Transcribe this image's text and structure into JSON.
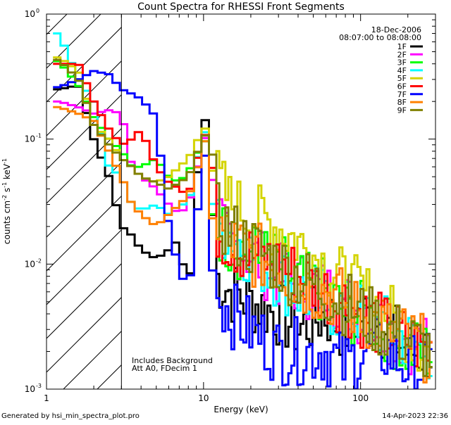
{
  "chart_data": {
    "type": "line",
    "title": "Count Spectra for RHESSI Front Segments",
    "xlabel": "Energy (keV)",
    "ylabel_parts": {
      "base": "counts cm",
      "exp1": "-2",
      "mid": " s",
      "exp2": "-1",
      "end": " keV",
      "exp3": "-1"
    },
    "x_scale": "log",
    "y_scale": "log",
    "xlim": [
      1,
      300
    ],
    "ylim": [
      0.001,
      1
    ],
    "x_ticks": [
      {
        "value": 1,
        "label": "1"
      },
      {
        "value": 10,
        "label": "10"
      },
      {
        "value": 100,
        "label": "100"
      }
    ],
    "y_ticks": [
      {
        "value": 0.001,
        "base": "10",
        "exp": "-3"
      },
      {
        "value": 0.01,
        "base": "10",
        "exp": "-2"
      },
      {
        "value": 0.1,
        "base": "10",
        "exp": "-1"
      },
      {
        "value": 1,
        "base": "10",
        "exp": "0"
      }
    ],
    "attenuator_cutoff_keV": 3,
    "date": "18-Dec-2006",
    "time_range": "08:07:00 to 08:08:00",
    "annotations": [
      "Includes Background",
      "Att A0, FDecim 1"
    ],
    "series": [
      {
        "name": "1F",
        "color": "#000000",
        "points": [
          [
            1.2,
            0.25
          ],
          [
            1.6,
            0.27
          ],
          [
            2,
            0.1
          ],
          [
            2.5,
            0.05
          ],
          [
            3,
            0.02
          ],
          [
            3.5,
            0.017
          ],
          [
            4,
            0.013
          ],
          [
            5,
            0.011
          ],
          [
            6,
            0.013
          ],
          [
            7,
            0.016
          ],
          [
            8,
            0.005
          ],
          [
            9,
            0.04
          ],
          [
            10,
            0.19
          ],
          [
            11,
            0.06
          ],
          [
            12,
            0.008
          ],
          [
            15,
            0.006
          ],
          [
            20,
            0.005
          ],
          [
            30,
            0.004
          ],
          [
            40,
            0.003
          ],
          [
            60,
            0.004
          ],
          [
            80,
            0.003
          ],
          [
            100,
            0.004
          ],
          [
            150,
            0.003
          ],
          [
            200,
            0.002
          ],
          [
            280,
            0.002
          ]
        ]
      },
      {
        "name": "2F",
        "color": "#ff00ff",
        "points": [
          [
            1.2,
            0.2
          ],
          [
            1.6,
            0.18
          ],
          [
            2,
            0.16
          ],
          [
            2.5,
            0.17
          ],
          [
            3,
            0.16
          ],
          [
            3.5,
            0.06
          ],
          [
            4,
            0.05
          ],
          [
            5,
            0.04
          ],
          [
            6,
            0.03
          ],
          [
            7,
            0.025
          ],
          [
            8,
            0.03
          ],
          [
            9,
            0.05
          ],
          [
            10,
            0.13
          ],
          [
            11,
            0.05
          ],
          [
            12,
            0.02
          ],
          [
            15,
            0.015
          ],
          [
            20,
            0.012
          ],
          [
            30,
            0.008
          ],
          [
            40,
            0.007
          ],
          [
            60,
            0.006
          ],
          [
            80,
            0.005
          ],
          [
            100,
            0.004
          ],
          [
            150,
            0.003
          ],
          [
            200,
            0.0025
          ],
          [
            280,
            0.002
          ]
        ]
      },
      {
        "name": "3F",
        "color": "#00ff00",
        "points": [
          [
            1.2,
            0.42
          ],
          [
            1.6,
            0.27
          ],
          [
            2,
            0.15
          ],
          [
            2.5,
            0.1
          ],
          [
            3,
            0.08
          ],
          [
            3.5,
            0.06
          ],
          [
            4,
            0.06
          ],
          [
            5,
            0.07
          ],
          [
            6,
            0.05
          ],
          [
            7,
            0.045
          ],
          [
            8,
            0.055
          ],
          [
            9,
            0.07
          ],
          [
            10,
            0.12
          ],
          [
            11,
            0.05
          ],
          [
            12,
            0.02
          ],
          [
            15,
            0.015
          ],
          [
            20,
            0.012
          ],
          [
            30,
            0.01
          ],
          [
            40,
            0.007
          ],
          [
            60,
            0.006
          ],
          [
            80,
            0.004
          ],
          [
            100,
            0.004
          ],
          [
            150,
            0.003
          ],
          [
            200,
            0.002
          ],
          [
            280,
            0.002
          ]
        ]
      },
      {
        "name": "4F",
        "color": "#00ffff",
        "points": [
          [
            1.2,
            0.7
          ],
          [
            1.6,
            0.3
          ],
          [
            2,
            0.2
          ],
          [
            2.5,
            0.06
          ],
          [
            3,
            0.05
          ],
          [
            3.5,
            0.03
          ],
          [
            4,
            0.027
          ],
          [
            5,
            0.03
          ],
          [
            6,
            0.025
          ],
          [
            7,
            0.03
          ],
          [
            8,
            0.03
          ],
          [
            9,
            0.06
          ],
          [
            10,
            0.15
          ],
          [
            11,
            0.05
          ],
          [
            12,
            0.02
          ],
          [
            15,
            0.018
          ],
          [
            20,
            0.012
          ],
          [
            30,
            0.008
          ],
          [
            40,
            0.006
          ],
          [
            60,
            0.005
          ],
          [
            80,
            0.004
          ],
          [
            100,
            0.004
          ],
          [
            150,
            0.003
          ],
          [
            200,
            0.0025
          ],
          [
            280,
            0.002
          ]
        ]
      },
      {
        "name": "5F",
        "color": "#d4d400",
        "points": [
          [
            1.2,
            0.45
          ],
          [
            1.6,
            0.35
          ],
          [
            2,
            0.13
          ],
          [
            2.5,
            0.1
          ],
          [
            3,
            0.07
          ],
          [
            3.5,
            0.06
          ],
          [
            4,
            0.05
          ],
          [
            5,
            0.045
          ],
          [
            6,
            0.05
          ],
          [
            7,
            0.06
          ],
          [
            8,
            0.07
          ],
          [
            9,
            0.09
          ],
          [
            10,
            0.14
          ],
          [
            11,
            0.08
          ],
          [
            12,
            0.05
          ],
          [
            15,
            0.03
          ],
          [
            20,
            0.025
          ],
          [
            30,
            0.02
          ],
          [
            40,
            0.015
          ],
          [
            60,
            0.01
          ],
          [
            80,
            0.007
          ],
          [
            100,
            0.006
          ],
          [
            150,
            0.004
          ],
          [
            200,
            0.003
          ],
          [
            280,
            0.002
          ]
        ]
      },
      {
        "name": "6F",
        "color": "#ff0000",
        "points": [
          [
            1.2,
            0.4
          ],
          [
            1.6,
            0.4
          ],
          [
            2,
            0.2
          ],
          [
            2.5,
            0.12
          ],
          [
            3,
            0.09
          ],
          [
            3.5,
            0.1
          ],
          [
            4,
            0.12
          ],
          [
            5,
            0.06
          ],
          [
            6,
            0.045
          ],
          [
            7,
            0.04
          ],
          [
            8,
            0.035
          ],
          [
            9,
            0.06
          ],
          [
            10,
            0.14
          ],
          [
            11,
            0.05
          ],
          [
            12,
            0.02
          ],
          [
            15,
            0.015
          ],
          [
            20,
            0.012
          ],
          [
            30,
            0.01
          ],
          [
            40,
            0.008
          ],
          [
            60,
            0.006
          ],
          [
            80,
            0.005
          ],
          [
            100,
            0.004
          ],
          [
            150,
            0.003
          ],
          [
            200,
            0.0025
          ],
          [
            280,
            0.002
          ]
        ]
      },
      {
        "name": "7F",
        "color": "#0000ff",
        "points": [
          [
            1.2,
            0.26
          ],
          [
            1.6,
            0.3
          ],
          [
            2,
            0.35
          ],
          [
            2.5,
            0.33
          ],
          [
            3,
            0.25
          ],
          [
            3.5,
            0.23
          ],
          [
            4,
            0.21
          ],
          [
            5,
            0.15
          ],
          [
            6,
            0.02
          ],
          [
            7,
            0.009
          ],
          [
            8,
            0.006
          ],
          [
            9,
            0.02
          ],
          [
            10,
            0.1
          ],
          [
            11,
            0.03
          ],
          [
            12,
            0.006
          ],
          [
            15,
            0.004
          ],
          [
            20,
            0.003
          ],
          [
            30,
            0.002
          ],
          [
            40,
            0.002
          ],
          [
            60,
            0.002
          ],
          [
            80,
            0.0015
          ],
          [
            100,
            0.002
          ],
          [
            150,
            0.002
          ],
          [
            200,
            0.0015
          ],
          [
            280,
            0.0015
          ]
        ]
      },
      {
        "name": "8F",
        "color": "#ff8000",
        "points": [
          [
            1.2,
            0.18
          ],
          [
            1.6,
            0.16
          ],
          [
            2,
            0.14
          ],
          [
            2.5,
            0.08
          ],
          [
            3,
            0.05
          ],
          [
            3.5,
            0.03
          ],
          [
            4,
            0.025
          ],
          [
            5,
            0.02
          ],
          [
            6,
            0.025
          ],
          [
            7,
            0.03
          ],
          [
            8,
            0.035
          ],
          [
            9,
            0.05
          ],
          [
            10,
            0.12
          ],
          [
            11,
            0.05
          ],
          [
            12,
            0.02
          ],
          [
            15,
            0.015
          ],
          [
            20,
            0.012
          ],
          [
            30,
            0.01
          ],
          [
            40,
            0.007
          ],
          [
            60,
            0.006
          ],
          [
            80,
            0.005
          ],
          [
            100,
            0.004
          ],
          [
            150,
            0.003
          ],
          [
            200,
            0.0025
          ],
          [
            280,
            0.002
          ]
        ]
      },
      {
        "name": "9F",
        "color": "#808000",
        "points": [
          [
            1.2,
            0.43
          ],
          [
            1.6,
            0.3
          ],
          [
            2,
            0.13
          ],
          [
            2.5,
            0.09
          ],
          [
            3,
            0.07
          ],
          [
            3.5,
            0.06
          ],
          [
            4,
            0.05
          ],
          [
            5,
            0.045
          ],
          [
            6,
            0.04
          ],
          [
            7,
            0.045
          ],
          [
            8,
            0.05
          ],
          [
            9,
            0.07
          ],
          [
            10,
            0.13
          ],
          [
            11,
            0.06
          ],
          [
            12,
            0.025
          ],
          [
            15,
            0.018
          ],
          [
            20,
            0.014
          ],
          [
            30,
            0.01
          ],
          [
            40,
            0.008
          ],
          [
            60,
            0.006
          ],
          [
            80,
            0.005
          ],
          [
            100,
            0.004
          ],
          [
            150,
            0.003
          ],
          [
            200,
            0.0025
          ],
          [
            280,
            0.002
          ]
        ]
      }
    ]
  },
  "footer": {
    "left": "Generated by hsi_min_spectra_plot.pro",
    "right": "14-Apr-2023 22:36"
  }
}
